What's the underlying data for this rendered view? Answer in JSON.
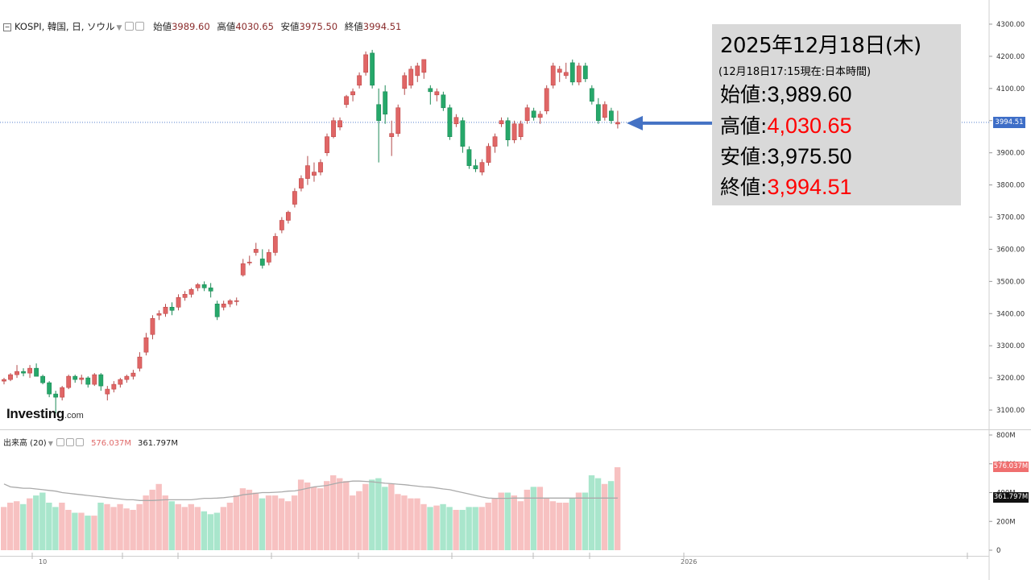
{
  "header": {
    "symbol": "KOSPI, 韓国, 日, ソウル",
    "open_label": "始値",
    "open": "3989.60",
    "high_label": "高値",
    "high": "4030.65",
    "low_label": "安値",
    "low": "3975.50",
    "close_label": "終値",
    "close": "3994.51"
  },
  "volume_header": {
    "label": "出来高 (20)",
    "value1": "576.037M",
    "value2": "361.797M"
  },
  "logo": {
    "brand": "Investing",
    "suffix": ".com"
  },
  "info_box": {
    "date": "2025年12月18日(木)",
    "note": "(12月18日17:15現在:日本時間)",
    "rows": [
      {
        "label": "始値",
        "value": "3,989.60",
        "color": "#000000"
      },
      {
        "label": "高値",
        "value": "4,030.65",
        "color": "#ff0000"
      },
      {
        "label": "安値",
        "value": "3,975.50",
        "color": "#000000"
      },
      {
        "label": "終値",
        "value": "3,994.51",
        "color": "#ff0000"
      }
    ],
    "separator": ":"
  },
  "price_tag": "3994.51",
  "volume_tags": {
    "current": "576.037M",
    "average": "361.797M"
  },
  "colors": {
    "up": "#e06666",
    "down": "#26a86a",
    "up_vol": "#f7c1c1",
    "down_vol": "#a9e6cc",
    "arrow": "#4472c4",
    "ma": "#aaaaaa",
    "price_line": "#3e6ec7"
  },
  "chart_data": {
    "type": "candlestick",
    "y_ticks": [
      "3100.00",
      "3200.00",
      "3300.00",
      "3400.00",
      "3500.00",
      "3600.00",
      "3700.00",
      "3800.00",
      "3900.00",
      "4000.00",
      "4100.00",
      "4200.00",
      "4300.00"
    ],
    "ylim": [
      3040,
      4330
    ],
    "volume_ticks": [
      "0",
      "200M",
      "400M",
      "600M",
      "800M"
    ],
    "volume_ylim": [
      0,
      800
    ],
    "x_labels": [
      "10",
      "2026"
    ],
    "candles": [
      [
        3190,
        3200,
        3180,
        3195
      ],
      [
        3195,
        3215,
        3190,
        3210
      ],
      [
        3210,
        3240,
        3200,
        3220
      ],
      [
        3220,
        3230,
        3205,
        3215
      ],
      [
        3215,
        3240,
        3200,
        3230
      ],
      [
        3230,
        3245,
        3210,
        3205
      ],
      [
        3205,
        3210,
        3180,
        3185
      ],
      [
        3185,
        3190,
        3140,
        3150
      ],
      [
        3150,
        3160,
        3090,
        3140
      ],
      [
        3140,
        3175,
        3130,
        3170
      ],
      [
        3170,
        3210,
        3165,
        3205
      ],
      [
        3205,
        3210,
        3185,
        3195
      ],
      [
        3195,
        3210,
        3180,
        3200
      ],
      [
        3200,
        3205,
        3170,
        3180
      ],
      [
        3180,
        3215,
        3175,
        3210
      ],
      [
        3210,
        3215,
        3160,
        3175
      ],
      [
        3150,
        3175,
        3130,
        3165
      ],
      [
        3165,
        3190,
        3155,
        3180
      ],
      [
        3180,
        3200,
        3170,
        3195
      ],
      [
        3195,
        3210,
        3185,
        3205
      ],
      [
        3205,
        3225,
        3195,
        3215
      ],
      [
        3230,
        3280,
        3220,
        3265
      ],
      [
        3280,
        3340,
        3270,
        3325
      ],
      [
        3335,
        3395,
        3320,
        3385
      ],
      [
        3395,
        3410,
        3380,
        3400
      ],
      [
        3400,
        3430,
        3390,
        3420
      ],
      [
        3420,
        3435,
        3395,
        3410
      ],
      [
        3420,
        3460,
        3410,
        3450
      ],
      [
        3450,
        3470,
        3440,
        3460
      ],
      [
        3460,
        3480,
        3450,
        3475
      ],
      [
        3480,
        3495,
        3470,
        3490
      ],
      [
        3490,
        3500,
        3470,
        3480
      ],
      [
        3480,
        3495,
        3450,
        3470
      ],
      [
        3430,
        3440,
        3380,
        3390
      ],
      [
        3420,
        3440,
        3410,
        3430
      ],
      [
        3430,
        3445,
        3420,
        3440
      ],
      [
        3440,
        3450,
        3425,
        3440
      ],
      [
        3520,
        3570,
        3515,
        3555
      ],
      [
        3560,
        3580,
        3550,
        3560
      ],
      [
        3590,
        3620,
        3580,
        3600
      ],
      [
        3570,
        3600,
        3540,
        3550
      ],
      [
        3560,
        3600,
        3550,
        3590
      ],
      [
        3590,
        3650,
        3580,
        3640
      ],
      [
        3660,
        3700,
        3650,
        3690
      ],
      [
        3690,
        3720,
        3680,
        3715
      ],
      [
        3740,
        3790,
        3730,
        3780
      ],
      [
        3790,
        3830,
        3780,
        3820
      ],
      [
        3820,
        3890,
        3800,
        3860
      ],
      [
        3830,
        3870,
        3810,
        3840
      ],
      [
        3840,
        3880,
        3830,
        3870
      ],
      [
        3900,
        3960,
        3890,
        3950
      ],
      [
        3950,
        4010,
        3945,
        4000
      ],
      [
        3980,
        4010,
        3970,
        4000
      ],
      [
        4050,
        4080,
        4040,
        4075
      ],
      [
        4080,
        4100,
        4060,
        4090
      ],
      [
        4110,
        4150,
        4100,
        4140
      ],
      [
        4150,
        4215,
        4140,
        4205
      ],
      [
        4210,
        4220,
        4100,
        4110
      ],
      [
        4050,
        4100,
        3870,
        4000
      ],
      [
        4090,
        4110,
        3990,
        4020
      ],
      [
        3950,
        4000,
        3890,
        3960
      ],
      [
        3960,
        4050,
        3950,
        4040
      ],
      [
        4100,
        4150,
        4080,
        4140
      ],
      [
        4110,
        4170,
        4100,
        4160
      ],
      [
        4140,
        4180,
        4120,
        4170
      ],
      [
        4150,
        4190,
        4130,
        4190
      ],
      [
        4100,
        4110,
        4050,
        4090
      ],
      [
        4080,
        4100,
        4060,
        4090
      ],
      [
        4080,
        4090,
        4030,
        4040
      ],
      [
        4040,
        4050,
        3940,
        3950
      ],
      [
        3990,
        4020,
        3980,
        4010
      ],
      [
        4000,
        4010,
        3900,
        3920
      ],
      [
        3910,
        3920,
        3850,
        3860
      ],
      [
        3860,
        3880,
        3840,
        3850
      ],
      [
        3840,
        3880,
        3830,
        3870
      ],
      [
        3870,
        3930,
        3860,
        3920
      ],
      [
        3920,
        3960,
        3900,
        3950
      ],
      [
        3990,
        4010,
        3980,
        4000
      ],
      [
        4000,
        4010,
        3920,
        3940
      ],
      [
        3940,
        4000,
        3930,
        3990
      ],
      [
        3950,
        4000,
        3940,
        3990
      ],
      [
        4000,
        4050,
        3990,
        4040
      ],
      [
        4030,
        4040,
        4000,
        4010
      ],
      [
        4010,
        4030,
        3990,
        4020
      ],
      [
        4030,
        4110,
        4020,
        4100
      ],
      [
        4110,
        4180,
        4100,
        4170
      ],
      [
        4150,
        4170,
        4120,
        4160
      ],
      [
        4140,
        4180,
        4130,
        4150
      ],
      [
        4180,
        4190,
        4110,
        4120
      ],
      [
        4120,
        4180,
        4110,
        4170
      ],
      [
        4170,
        4180,
        4120,
        4130
      ],
      [
        4100,
        4110,
        4050,
        4060
      ],
      [
        4050,
        4070,
        3990,
        4000
      ],
      [
        4010,
        4060,
        4000,
        4050
      ],
      [
        4030,
        4040,
        3990,
        4000
      ],
      [
        3989.6,
        4030.65,
        3975.5,
        3994.51
      ]
    ],
    "volumes": [
      300,
      330,
      340,
      320,
      360,
      380,
      400,
      330,
      300,
      330,
      280,
      260,
      260,
      240,
      240,
      330,
      320,
      300,
      320,
      290,
      280,
      320,
      380,
      420,
      460,
      380,
      340,
      320,
      300,
      320,
      300,
      270,
      250,
      260,
      300,
      330,
      380,
      430,
      420,
      400,
      360,
      380,
      380,
      360,
      340,
      380,
      490,
      470,
      440,
      430,
      480,
      520,
      500,
      480,
      380,
      410,
      460,
      490,
      500,
      440,
      460,
      390,
      380,
      360,
      360,
      320,
      300,
      310,
      320,
      300,
      280,
      280,
      300,
      300,
      300,
      330,
      360,
      400,
      400,
      380,
      340,
      420,
      440,
      440,
      360,
      340,
      330,
      330,
      360,
      400,
      400,
      520,
      500,
      460,
      480,
      576.037
    ],
    "ma20": [
      460,
      440,
      435,
      430,
      430,
      425,
      420,
      415,
      410,
      400,
      395,
      390,
      385,
      380,
      375,
      370,
      365,
      360,
      355,
      350,
      350,
      345,
      345,
      345,
      348,
      350,
      350,
      350,
      350,
      350,
      355,
      360,
      360,
      362,
      365,
      370,
      375,
      385,
      390,
      395,
      400,
      400,
      402,
      405,
      410,
      412,
      420,
      430,
      440,
      445,
      450,
      460,
      470,
      475,
      480,
      480,
      478,
      475,
      470,
      465,
      462,
      458,
      455,
      450,
      445,
      440,
      438,
      432,
      425,
      420,
      410,
      400,
      390,
      380,
      370,
      362,
      360,
      360,
      360,
      362,
      362,
      362,
      362,
      362,
      362,
      362,
      362,
      362,
      362,
      362,
      362,
      362,
      362,
      362,
      362,
      361.797
    ],
    "last_price": 3994.51,
    "title": "",
    "xlabel": "",
    "ylabel": ""
  }
}
